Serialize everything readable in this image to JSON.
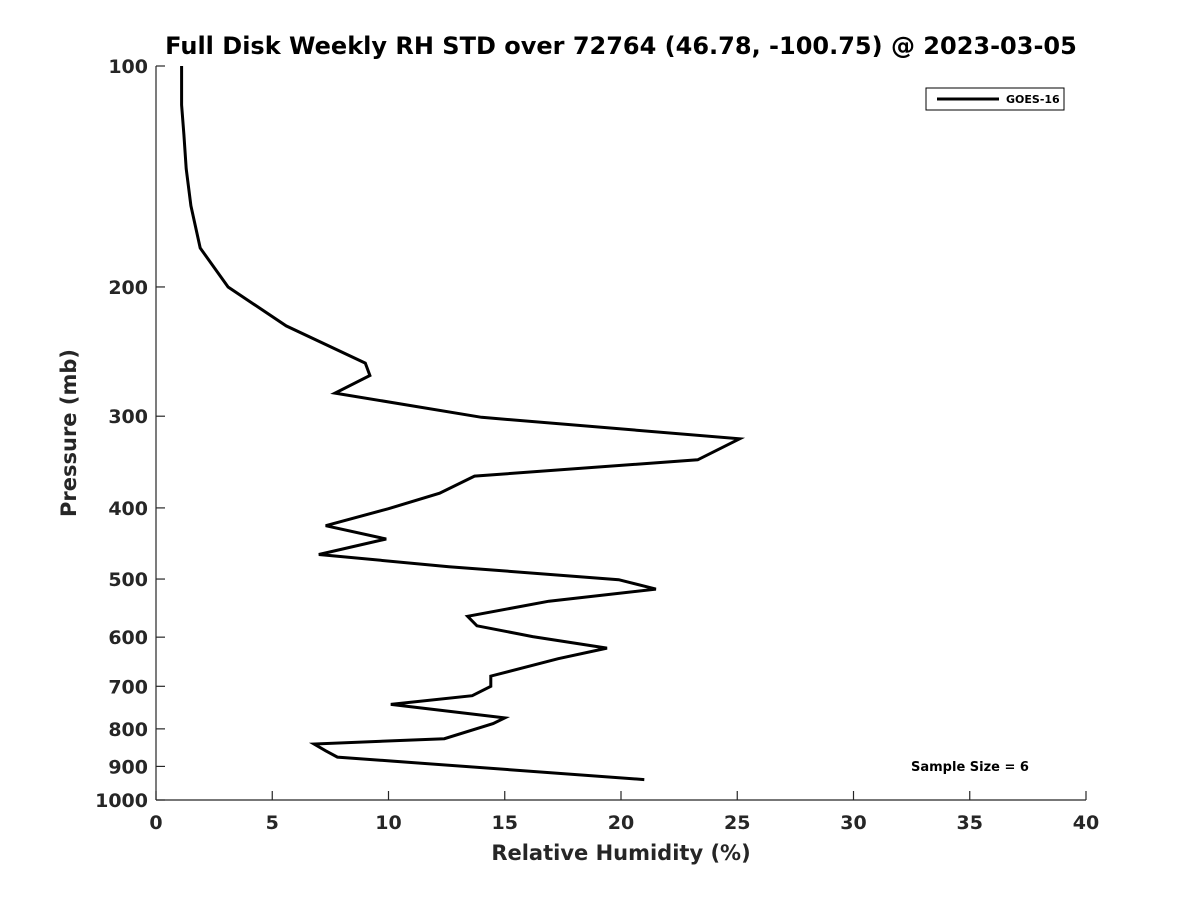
{
  "chart_data": {
    "type": "line",
    "title": "Full Disk Weekly RH STD over 72764 (46.78, -100.75) @ 2023-03-05",
    "xlabel": "Relative Humidity (%)",
    "ylabel": "Pressure (mb)",
    "xlim": [
      0,
      40
    ],
    "ylim": [
      100,
      1000
    ],
    "y_scale": "log",
    "y_reversed": true,
    "x_ticks": [
      0,
      5,
      10,
      15,
      20,
      25,
      30,
      35,
      40
    ],
    "y_ticks": [
      100,
      200,
      300,
      400,
      500,
      600,
      700,
      800,
      900,
      1000
    ],
    "grid": false,
    "legend_position": "top-right",
    "series": [
      {
        "name": "GOES-16",
        "color": "#000000",
        "points": [
          [
            1.1,
            100
          ],
          [
            1.1,
            113
          ],
          [
            1.2,
            124
          ],
          [
            1.3,
            138
          ],
          [
            1.5,
            155
          ],
          [
            1.9,
            177
          ],
          [
            3.1,
            200
          ],
          [
            5.6,
            226
          ],
          [
            9.0,
            254
          ],
          [
            9.2,
            264
          ],
          [
            7.7,
            279
          ],
          [
            14.0,
            301
          ],
          [
            25.1,
            322
          ],
          [
            23.3,
            344
          ],
          [
            13.7,
            362
          ],
          [
            12.2,
            382
          ],
          [
            10.0,
            401
          ],
          [
            7.3,
            423
          ],
          [
            9.9,
            441
          ],
          [
            7.0,
            463
          ],
          [
            12.6,
            481
          ],
          [
            19.9,
            501
          ],
          [
            21.5,
            516
          ],
          [
            16.9,
            536
          ],
          [
            13.4,
            562
          ],
          [
            13.8,
            579
          ],
          [
            16.2,
            599
          ],
          [
            19.4,
            621
          ],
          [
            17.3,
            642
          ],
          [
            14.4,
            678
          ],
          [
            14.4,
            700
          ],
          [
            13.6,
            721
          ],
          [
            10.1,
            741
          ],
          [
            15.0,
            773
          ],
          [
            14.5,
            787
          ],
          [
            12.4,
            825
          ],
          [
            6.8,
            839
          ],
          [
            7.3,
            857
          ],
          [
            7.8,
            874
          ],
          [
            21.0,
            938
          ]
        ]
      }
    ],
    "annotations": [
      "Sample Size = 6"
    ]
  }
}
